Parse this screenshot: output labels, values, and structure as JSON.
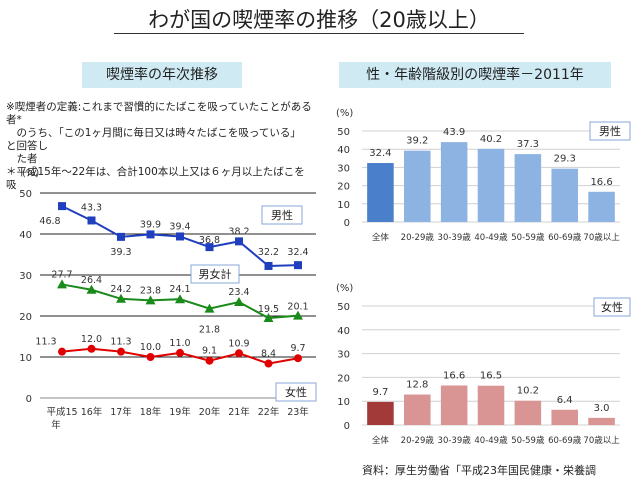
{
  "title": "わが国の喫煙率の推移（20歳以上）",
  "banner_left": "喫煙率の年次推移",
  "banner_right": "性・年齢階級別の喫煙率－2011年",
  "notes": {
    "line1": "※喫煙者の定義:これまで習慣的にたばこを吸っていたことがある",
    "line2": "者*",
    "line3": "　のうち、「この1ヶ月間に毎日又は時々たばこを吸っている」",
    "line4": "と回答し",
    "line5": "　た者",
    "line6": "＊平成15年～22年は、合計100本以上又は６ヶ月以上たばこを",
    "line7": "吸"
  },
  "source": "資料：厚生労働省「平成23年国民健康・栄養調",
  "chart_data": [
    {
      "type": "line",
      "ylabel": "(%)",
      "ylim": [
        0,
        50
      ],
      "yticks": [
        "0",
        "10",
        "20",
        "30",
        "40",
        "50"
      ],
      "categories": [
        "平成15",
        "16年",
        "17年",
        "18年",
        "19年",
        "20年",
        "21年",
        "22年",
        "23年"
      ],
      "category_suffix": "年",
      "series": [
        {
          "name": "男性",
          "color": "#1f3fbf",
          "marker": "square",
          "values": [
            46.8,
            43.3,
            39.3,
            39.9,
            39.4,
            36.8,
            38.2,
            32.2,
            32.4
          ]
        },
        {
          "name": "男女計",
          "color": "#1a8a1a",
          "marker": "triangle",
          "values": [
            27.7,
            26.4,
            24.2,
            23.8,
            24.1,
            21.8,
            23.4,
            19.5,
            20.1
          ]
        },
        {
          "name": "女性",
          "color": "#e00000",
          "marker": "circle",
          "values": [
            11.3,
            12.0,
            11.3,
            10.0,
            11.0,
            9.1,
            10.9,
            8.4,
            9.7
          ]
        }
      ]
    },
    {
      "type": "bar",
      "title": "男性",
      "ylabel": "(%)",
      "ylim": [
        0,
        50
      ],
      "yticks": [
        "0",
        "10",
        "20",
        "30",
        "40",
        "50"
      ],
      "categories": [
        "全体",
        "20-29歳",
        "30-39歳",
        "40-49歳",
        "50-59歳",
        "60-69歳",
        "70歳以上"
      ],
      "values": [
        32.4,
        39.2,
        43.9,
        40.2,
        37.3,
        29.3,
        16.6
      ],
      "total_color": "#4a7fcb",
      "color": "#8db3e2"
    },
    {
      "type": "bar",
      "title": "女性",
      "ylabel": "(%)",
      "ylim": [
        0,
        50
      ],
      "yticks": [
        "0",
        "10",
        "20",
        "30",
        "40",
        "50"
      ],
      "categories": [
        "全体",
        "20-29歳",
        "30-39歳",
        "40-49歳",
        "50-59歳",
        "60-69歳",
        "70歳以上"
      ],
      "values": [
        9.7,
        12.8,
        16.6,
        16.5,
        10.2,
        6.4,
        3.0
      ],
      "total_color": "#a33a3a",
      "color": "#d99594"
    }
  ]
}
